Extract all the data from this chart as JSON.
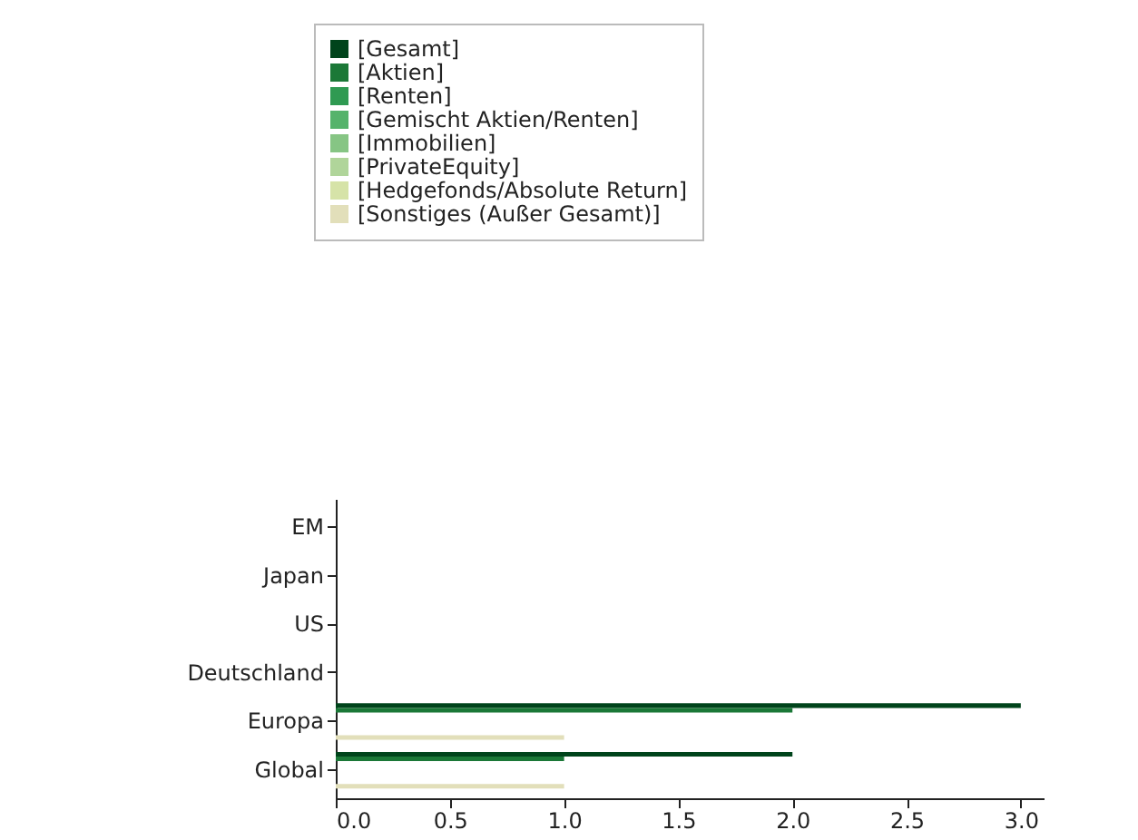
{
  "chart_data": {
    "type": "bar",
    "orientation": "horizontal",
    "categories": [
      "EM",
      "Japan",
      "US",
      "Deutschland",
      "Europa",
      "Global"
    ],
    "series": [
      {
        "name": "[Gesamt]",
        "color": "#00441b",
        "values": [
          0,
          0,
          0,
          0,
          3,
          2
        ]
      },
      {
        "name": "[Aktien]",
        "color": "#1b7837",
        "values": [
          0,
          0,
          0,
          0,
          2,
          1
        ]
      },
      {
        "name": "[Renten]",
        "color": "#2f9a52",
        "values": [
          0,
          0,
          0,
          0,
          0,
          0
        ]
      },
      {
        "name": "[Gemischt Aktien/Renten]",
        "color": "#55b36b",
        "values": [
          0,
          0,
          0,
          0,
          0,
          0
        ]
      },
      {
        "name": "[Immobilien]",
        "color": "#86c584",
        "values": [
          0,
          0,
          0,
          0,
          0,
          0
        ]
      },
      {
        "name": "[PrivateEquity]",
        "color": "#b0d59a",
        "values": [
          0,
          0,
          0,
          0,
          0,
          0
        ]
      },
      {
        "name": "[Hedgefonds/Absolute Return]",
        "color": "#d6e3a8",
        "values": [
          0,
          0,
          0,
          0,
          0,
          0
        ]
      },
      {
        "name": "[Sonstiges (Außer Gesamt)]",
        "color": "#e2dfba",
        "values": [
          0,
          0,
          0,
          0,
          1,
          1
        ]
      }
    ],
    "xlim": [
      0,
      3.1
    ],
    "xticks": [
      {
        "value": 0,
        "label": "0.0"
      },
      0.5,
      {
        "value": 1,
        "label": "1.0"
      },
      1.5,
      {
        "value": 2,
        "label": "2.0"
      },
      2.5,
      {
        "value": 3,
        "label": "3.0"
      }
    ],
    "grid": false,
    "legend": "top"
  }
}
